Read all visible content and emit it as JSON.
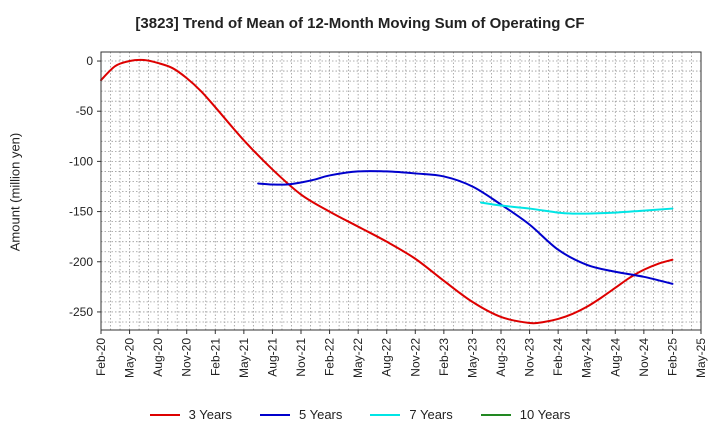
{
  "chart_data": {
    "type": "line",
    "title": "[3823]  Trend of Mean of 12-Month Moving Sum of Operating CF",
    "xlabel": "",
    "ylabel": "Amount (million yen)",
    "ylim": [
      -268,
      9
    ],
    "yticks": [
      0,
      -50,
      -100,
      -150,
      -200,
      -250
    ],
    "xlabels": [
      "Feb-20",
      "May-20",
      "Aug-20",
      "Nov-20",
      "Feb-21",
      "May-21",
      "Aug-21",
      "Nov-21",
      "Feb-22",
      "May-22",
      "Aug-22",
      "Nov-22",
      "Feb-23",
      "May-23",
      "Aug-23",
      "Nov-23",
      "Feb-24",
      "May-24",
      "Aug-24",
      "Nov-24",
      "Feb-25",
      "May-25"
    ],
    "grid": true,
    "legend_position": "bottom",
    "series": [
      {
        "name": "3 Years",
        "color": "#dd0000",
        "points": [
          [
            0,
            -19
          ],
          [
            0.5,
            -5
          ],
          [
            1,
            0
          ],
          [
            1.5,
            1
          ],
          [
            2,
            -2
          ],
          [
            2.5,
            -7
          ],
          [
            3,
            -17
          ],
          [
            3.5,
            -30
          ],
          [
            4,
            -46
          ],
          [
            5,
            -79
          ],
          [
            6,
            -108
          ],
          [
            7,
            -133
          ],
          [
            8,
            -150
          ],
          [
            9,
            -165
          ],
          [
            10,
            -180
          ],
          [
            11,
            -197
          ],
          [
            12,
            -219
          ],
          [
            13,
            -240
          ],
          [
            14,
            -255
          ],
          [
            15,
            -261
          ],
          [
            15.5,
            -260
          ],
          [
            16,
            -257
          ],
          [
            16.5,
            -252
          ],
          [
            17,
            -245
          ],
          [
            17.5,
            -236
          ],
          [
            18,
            -226
          ],
          [
            18.5,
            -216
          ],
          [
            19,
            -208
          ],
          [
            19.5,
            -202
          ],
          [
            20,
            -198
          ]
        ]
      },
      {
        "name": "5 Years",
        "color": "#0000cc",
        "points": [
          [
            5.5,
            -122
          ],
          [
            6,
            -123
          ],
          [
            6.5,
            -123
          ],
          [
            7,
            -121
          ],
          [
            7.5,
            -118
          ],
          [
            8,
            -114
          ],
          [
            9,
            -110
          ],
          [
            10,
            -110
          ],
          [
            11,
            -112
          ],
          [
            12,
            -115
          ],
          [
            13,
            -125
          ],
          [
            14,
            -143
          ],
          [
            15,
            -163
          ],
          [
            16,
            -188
          ],
          [
            17,
            -203
          ],
          [
            18,
            -210
          ],
          [
            19,
            -215
          ],
          [
            20,
            -222
          ]
        ]
      },
      {
        "name": "7 Years",
        "color": "#00e5e5",
        "points": [
          [
            13.3,
            -141
          ],
          [
            14,
            -144
          ],
          [
            15,
            -147
          ],
          [
            16,
            -151
          ],
          [
            16.5,
            -152
          ],
          [
            17,
            -152
          ],
          [
            18,
            -151
          ],
          [
            19,
            -149
          ],
          [
            20,
            -147
          ]
        ]
      },
      {
        "name": "10 Years",
        "color": "#228822",
        "points": []
      }
    ]
  }
}
